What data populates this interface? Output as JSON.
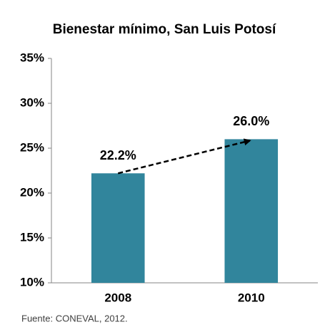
{
  "chart_data": {
    "type": "bar",
    "title": "Bienestar mínimo, San Luis Potosí",
    "categories": [
      "2008",
      "2010"
    ],
    "values": [
      22.2,
      26.0
    ],
    "value_labels": [
      "22.2%",
      "26.0%"
    ],
    "color": "#31859c",
    "ylim": [
      10,
      35
    ],
    "yticks": [
      {
        "value": 10,
        "label": "10%"
      },
      {
        "value": 15,
        "label": "15%"
      },
      {
        "value": 20,
        "label": "20%"
      },
      {
        "value": 25,
        "label": "25%"
      },
      {
        "value": 30,
        "label": "30%"
      },
      {
        "value": 35,
        "label": "35%"
      }
    ],
    "grid": false,
    "source": "Fuente: CONEVAL, 2012."
  }
}
